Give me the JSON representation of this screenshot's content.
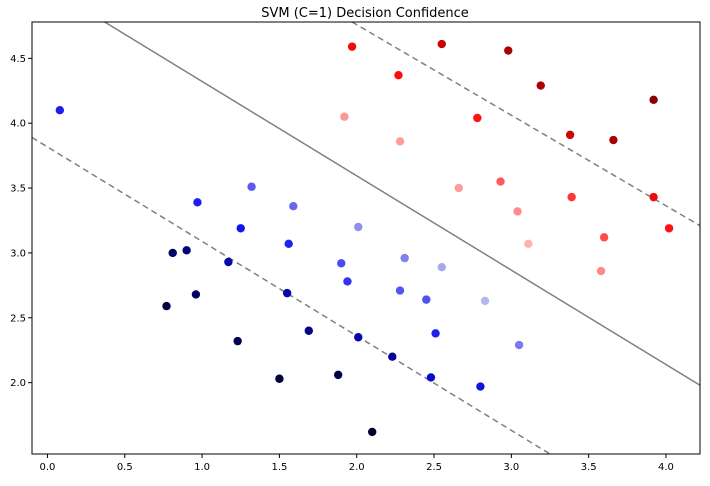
{
  "chart_data": {
    "type": "scatter",
    "title": "SVM (C=1) Decision Confidence",
    "xlabel": "",
    "ylabel": "",
    "xlim": [
      -0.1,
      4.22
    ],
    "ylim": [
      1.45,
      4.78
    ],
    "grid": false,
    "x_ticks": [
      0.0,
      0.5,
      1.0,
      1.5,
      2.0,
      2.5,
      3.0,
      3.5,
      4.0
    ],
    "x_tick_labels": [
      "0.0",
      "0.5",
      "1.0",
      "1.5",
      "2.0",
      "2.5",
      "3.0",
      "3.5",
      "4.0"
    ],
    "y_ticks": [
      2.0,
      2.5,
      3.0,
      3.5,
      4.0,
      4.5
    ],
    "y_tick_labels": [
      "2.0",
      "2.5",
      "3.0",
      "3.5",
      "4.0",
      "4.5"
    ],
    "decision_boundary": {
      "color": "#808080",
      "style": "solid",
      "points": [
        [
          0.37,
          4.78
        ],
        [
          4.22,
          1.98
        ]
      ]
    },
    "margins": [
      {
        "color": "#808080",
        "style": "dashed",
        "points": [
          [
            1.97,
            4.78
          ],
          [
            4.22,
            3.21
          ]
        ]
      },
      {
        "color": "#808080",
        "style": "dashed",
        "points": [
          [
            -0.1,
            3.89
          ],
          [
            3.25,
            1.45
          ]
        ]
      }
    ],
    "points": [
      {
        "x": 0.08,
        "y": 4.1,
        "color": "#1f1fee"
      },
      {
        "x": 0.97,
        "y": 3.39,
        "color": "#1d1df3"
      },
      {
        "x": 1.32,
        "y": 3.51,
        "color": "#5a5aee"
      },
      {
        "x": 1.59,
        "y": 3.36,
        "color": "#6767ee"
      },
      {
        "x": 1.25,
        "y": 3.19,
        "color": "#1414ee"
      },
      {
        "x": 1.56,
        "y": 3.07,
        "color": "#2222ee"
      },
      {
        "x": 2.01,
        "y": 3.2,
        "color": "#8f8fee"
      },
      {
        "x": 1.9,
        "y": 2.92,
        "color": "#4a4aee"
      },
      {
        "x": 1.94,
        "y": 2.78,
        "color": "#3434ee"
      },
      {
        "x": 2.31,
        "y": 2.96,
        "color": "#8080ee"
      },
      {
        "x": 2.55,
        "y": 2.89,
        "color": "#a7a7f2"
      },
      {
        "x": 2.83,
        "y": 2.63,
        "color": "#b5b5f2"
      },
      {
        "x": 2.28,
        "y": 2.71,
        "color": "#5555ee"
      },
      {
        "x": 2.45,
        "y": 2.64,
        "color": "#5050ee"
      },
      {
        "x": 2.51,
        "y": 2.38,
        "color": "#2020ee"
      },
      {
        "x": 3.05,
        "y": 2.29,
        "color": "#7a7aee"
      },
      {
        "x": 2.8,
        "y": 1.97,
        "color": "#1313dd"
      },
      {
        "x": 2.48,
        "y": 2.04,
        "color": "#0a0acc"
      },
      {
        "x": 2.23,
        "y": 2.2,
        "color": "#050599"
      },
      {
        "x": 2.01,
        "y": 2.35,
        "color": "#0606aa"
      },
      {
        "x": 1.69,
        "y": 2.4,
        "color": "#040480"
      },
      {
        "x": 1.55,
        "y": 2.69,
        "color": "#0808aa"
      },
      {
        "x": 1.17,
        "y": 2.93,
        "color": "#0606aa"
      },
      {
        "x": 0.9,
        "y": 3.02,
        "color": "#03037a"
      },
      {
        "x": 0.81,
        "y": 3.0,
        "color": "#030366"
      },
      {
        "x": 0.96,
        "y": 2.68,
        "color": "#020260"
      },
      {
        "x": 0.77,
        "y": 2.59,
        "color": "#010144"
      },
      {
        "x": 1.23,
        "y": 2.32,
        "color": "#010150"
      },
      {
        "x": 1.5,
        "y": 2.03,
        "color": "#00003a"
      },
      {
        "x": 1.88,
        "y": 2.06,
        "color": "#010148"
      },
      {
        "x": 2.1,
        "y": 1.62,
        "color": "#000030"
      },
      {
        "x": 1.97,
        "y": 4.59,
        "color": "#ee0d0d"
      },
      {
        "x": 2.55,
        "y": 4.61,
        "color": "#cc0000"
      },
      {
        "x": 2.98,
        "y": 4.56,
        "color": "#aa0000"
      },
      {
        "x": 3.19,
        "y": 4.29,
        "color": "#aa0000"
      },
      {
        "x": 2.27,
        "y": 4.37,
        "color": "#ff0b0b"
      },
      {
        "x": 1.92,
        "y": 4.05,
        "color": "#ff9696"
      },
      {
        "x": 2.28,
        "y": 3.86,
        "color": "#ff9e9e"
      },
      {
        "x": 2.78,
        "y": 4.04,
        "color": "#ff1414"
      },
      {
        "x": 3.38,
        "y": 3.91,
        "color": "#cc0505"
      },
      {
        "x": 3.66,
        "y": 3.87,
        "color": "#aa0000"
      },
      {
        "x": 3.92,
        "y": 4.18,
        "color": "#880000"
      },
      {
        "x": 2.66,
        "y": 3.5,
        "color": "#ff9a9a"
      },
      {
        "x": 2.93,
        "y": 3.55,
        "color": "#ff5a5a"
      },
      {
        "x": 3.04,
        "y": 3.32,
        "color": "#ff8a8a"
      },
      {
        "x": 3.11,
        "y": 3.07,
        "color": "#ffb0b0"
      },
      {
        "x": 3.39,
        "y": 3.43,
        "color": "#ff3535"
      },
      {
        "x": 3.6,
        "y": 3.12,
        "color": "#ff4a4a"
      },
      {
        "x": 3.58,
        "y": 2.86,
        "color": "#ff8888"
      },
      {
        "x": 3.92,
        "y": 3.43,
        "color": "#ee0d0d"
      },
      {
        "x": 4.02,
        "y": 3.19,
        "color": "#ff1111"
      }
    ]
  }
}
